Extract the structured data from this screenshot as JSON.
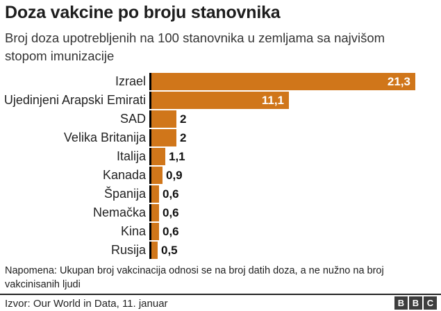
{
  "chart_data": {
    "type": "bar",
    "orientation": "horizontal",
    "title": "Doza vakcine po broju stanovnika",
    "subtitle": "Broj doza upotrebljenih na 100 stanovnika u zemljama sa najvišom stopom imunizacije",
    "categories": [
      "Izrael",
      "Ujedinjeni Arapski Emirati",
      "SAD",
      "Velika Britanija",
      "Italija",
      "Kanada",
      "Španija",
      "Nemačka",
      "Kina",
      "Rusija"
    ],
    "values": [
      21.3,
      11.1,
      2,
      2,
      1.1,
      0.9,
      0.6,
      0.6,
      0.6,
      0.5
    ],
    "value_labels": [
      "21,3",
      "11,1",
      "2",
      "2",
      "1,1",
      "0,9",
      "0,6",
      "0,6",
      "0,6",
      "0,5"
    ],
    "xlim": [
      0,
      21.3
    ],
    "bar_color": "#d0761a",
    "axis_color": "#000000",
    "legend": "none",
    "grid": "off"
  },
  "note": "Napomena: Ukupan broj vakcinacija odnosi se na broj datih doza, a ne nužno na broj vakcinisanih ljudi",
  "footer": {
    "source": "Izvor: Our World in Data, 11. januar",
    "logo_letters": [
      "B",
      "B",
      "C"
    ]
  }
}
